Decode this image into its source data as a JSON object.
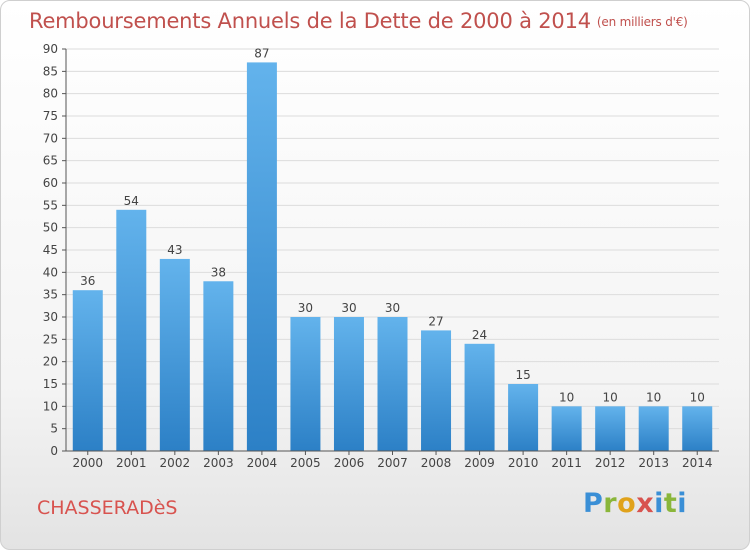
{
  "header": {
    "title": "Remboursements Annuels de la Dette de 2000 à 2014",
    "subtitle": "(en milliers d'€)"
  },
  "footer": {
    "commune": "CHASSERADèS",
    "brand": {
      "letters": [
        "P",
        "r",
        "o",
        "x",
        "i",
        "t",
        "i"
      ],
      "colors": [
        "#3a8fd6",
        "#8ab63a",
        "#e0a21b",
        "#d8534f",
        "#3a8fd6",
        "#8ab63a",
        "#3a8fd6"
      ]
    }
  },
  "chart_data": {
    "type": "bar",
    "title": "Remboursements Annuels de la Dette de 2000 à 2014",
    "subtitle": "(en milliers d'€)",
    "categories": [
      "2000",
      "2001",
      "2002",
      "2003",
      "2004",
      "2005",
      "2006",
      "2007",
      "2008",
      "2009",
      "2010",
      "2011",
      "2012",
      "2013",
      "2014"
    ],
    "values": [
      36,
      54,
      43,
      38,
      87,
      30,
      30,
      30,
      27,
      24,
      15,
      10,
      10,
      10,
      10
    ],
    "ylim": [
      0,
      90
    ],
    "ytick_step": 5,
    "grid": true,
    "bar_color_light": "#63b3ec",
    "bar_color_dark": "#2c80c6",
    "grid_color": "#dcdcdc",
    "axis_color": "#555555"
  }
}
